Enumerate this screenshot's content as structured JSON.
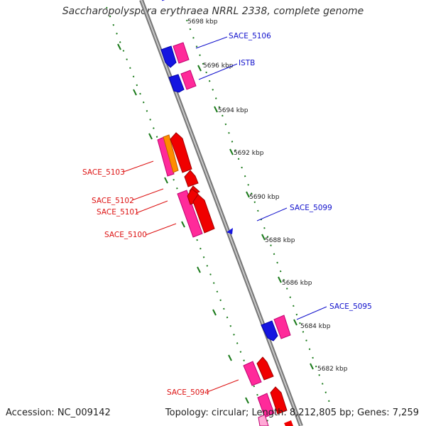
{
  "title": "Saccharopolyspora erythraea NRRL 2338, complete genome",
  "accession": "Accession: NC_009142",
  "topology": "Topology: circular; Length: 8,212,805 bp; Genes: 7,259",
  "colors": {
    "backbone": "#8a8a8a",
    "tick_dots": "#1a7a1a",
    "label_forward": "#1010cc",
    "label_reverse": "#dd1111",
    "gene_blue": "#1515e0",
    "gene_pink": "#ff2a9a",
    "gene_red": "#f00000",
    "gene_orange": "#ff8c00"
  },
  "scale_labels": [
    "5698 kbp",
    "5696 kbp",
    "5694 kbp",
    "5692 kbp",
    "5690 kbp",
    "5688 kbp",
    "5686 kbp",
    "5684 kbp",
    "5682 kbp"
  ],
  "gene_labels": [
    {
      "text": "SACE_5106",
      "strand": "forward"
    },
    {
      "text": "ISTB",
      "strand": "forward"
    },
    {
      "text": "SACE_5099",
      "strand": "forward"
    },
    {
      "text": "SACE_5095",
      "strand": "forward"
    },
    {
      "text": "SACE_5103",
      "strand": "reverse"
    },
    {
      "text": "SACE_5102",
      "strand": "reverse"
    },
    {
      "text": "SACE_5101",
      "strand": "reverse"
    },
    {
      "text": "SACE_5100",
      "strand": "reverse"
    },
    {
      "text": "SACE_5094",
      "strand": "reverse"
    }
  ]
}
